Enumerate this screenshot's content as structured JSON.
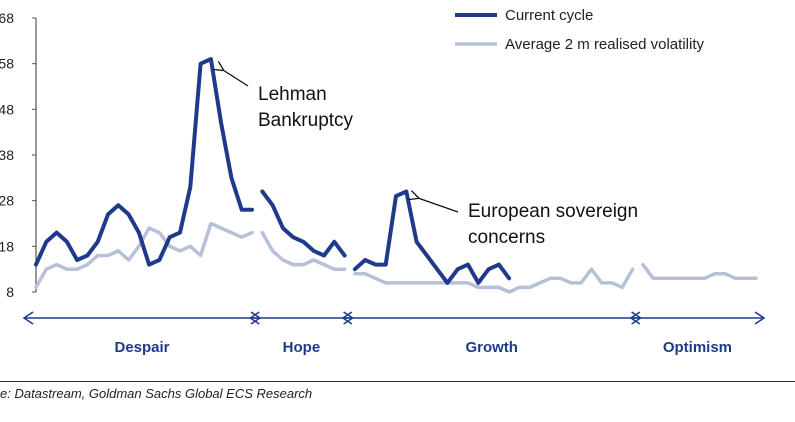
{
  "chart_data": {
    "type": "line",
    "title": "",
    "xlabel": "",
    "ylabel": "",
    "ylim": [
      8,
      68
    ],
    "y_ticks": [
      "68",
      "58",
      "48",
      "38",
      "28",
      "18",
      "8"
    ],
    "grid": false,
    "legend_position": "top-right",
    "series": [
      {
        "name": "Current cycle",
        "color": "#1f3a8a",
        "segments": [
          [
            [
              0,
              14
            ],
            [
              6,
              19
            ],
            [
              12,
              21
            ],
            [
              18,
              19
            ],
            [
              24,
              15
            ],
            [
              30,
              16
            ],
            [
              36,
              19
            ],
            [
              42,
              25
            ],
            [
              48,
              27
            ],
            [
              54,
              25
            ],
            [
              60,
              21
            ],
            [
              66,
              14
            ],
            [
              72,
              15
            ],
            [
              78,
              20
            ],
            [
              84,
              21
            ],
            [
              90,
              31
            ],
            [
              96,
              58
            ],
            [
              102,
              59
            ],
            [
              108,
              45
            ],
            [
              114,
              33
            ],
            [
              120,
              26
            ],
            [
              126,
              26
            ]
          ],
          [
            [
              132,
              30
            ],
            [
              138,
              27
            ],
            [
              144,
              22
            ],
            [
              150,
              20
            ],
            [
              156,
              19
            ],
            [
              162,
              17
            ],
            [
              168,
              16
            ],
            [
              174,
              19
            ],
            [
              180,
              16
            ]
          ],
          [
            [
              186,
              13
            ],
            [
              192,
              15
            ],
            [
              198,
              14
            ],
            [
              204,
              14
            ],
            [
              210,
              29
            ],
            [
              216,
              30
            ],
            [
              222,
              19
            ],
            [
              228,
              16
            ],
            [
              234,
              13
            ],
            [
              240,
              10
            ],
            [
              246,
              13
            ],
            [
              252,
              14
            ],
            [
              258,
              10
            ],
            [
              264,
              13
            ],
            [
              270,
              14
            ],
            [
              276,
              11
            ]
          ]
        ]
      },
      {
        "name": "Average 2 m realised volatility",
        "color": "#b7c0d8",
        "segments": [
          [
            [
              0,
              9
            ],
            [
              6,
              13
            ],
            [
              12,
              14
            ],
            [
              18,
              13
            ],
            [
              24,
              13
            ],
            [
              30,
              14
            ],
            [
              36,
              16
            ],
            [
              42,
              16
            ],
            [
              48,
              17
            ],
            [
              54,
              15
            ],
            [
              60,
              18
            ],
            [
              66,
              22
            ],
            [
              72,
              21
            ],
            [
              78,
              18
            ],
            [
              84,
              17
            ],
            [
              90,
              18
            ],
            [
              96,
              16
            ],
            [
              102,
              23
            ],
            [
              108,
              22
            ],
            [
              114,
              21
            ],
            [
              120,
              20
            ],
            [
              126,
              21
            ]
          ],
          [
            [
              132,
              21
            ],
            [
              138,
              17
            ],
            [
              144,
              15
            ],
            [
              150,
              14
            ],
            [
              156,
              14
            ],
            [
              162,
              15
            ],
            [
              168,
              14
            ],
            [
              174,
              13
            ],
            [
              180,
              13
            ]
          ],
          [
            [
              186,
              12
            ],
            [
              192,
              12
            ],
            [
              198,
              11
            ],
            [
              204,
              10
            ],
            [
              210,
              10
            ],
            [
              216,
              10
            ],
            [
              222,
              10
            ],
            [
              228,
              10
            ],
            [
              234,
              10
            ],
            [
              240,
              10
            ],
            [
              246,
              10
            ],
            [
              252,
              10
            ],
            [
              258,
              9
            ],
            [
              264,
              9
            ],
            [
              270,
              9
            ],
            [
              276,
              8
            ],
            [
              282,
              9
            ],
            [
              288,
              9
            ],
            [
              294,
              10
            ],
            [
              300,
              11
            ],
            [
              306,
              11
            ],
            [
              312,
              10
            ],
            [
              318,
              10
            ],
            [
              324,
              13
            ],
            [
              330,
              10
            ],
            [
              336,
              10
            ],
            [
              342,
              9
            ],
            [
              348,
              13
            ]
          ],
          [
            [
              354,
              14
            ],
            [
              360,
              11
            ],
            [
              366,
              11
            ],
            [
              372,
              11
            ],
            [
              378,
              11
            ],
            [
              384,
              11
            ],
            [
              390,
              11
            ],
            [
              396,
              12
            ],
            [
              402,
              12
            ],
            [
              408,
              11
            ],
            [
              414,
              11
            ],
            [
              420,
              11
            ]
          ]
        ]
      }
    ],
    "annotations": [
      {
        "lines": [
          "Lehman",
          "Bankruptcy"
        ],
        "x": 104,
        "y": 58
      },
      {
        "lines": [
          "European sovereign",
          "concerns"
        ],
        "x": 212,
        "y": 31
      }
    ],
    "phases": [
      {
        "label": "Despair",
        "x_start": 0,
        "x_end": 126
      },
      {
        "label": "Hope",
        "x_start": 132,
        "x_end": 180
      },
      {
        "label": "Growth",
        "x_start": 186,
        "x_end": 348
      },
      {
        "label": "Optimism",
        "x_start": 354,
        "x_end": 420
      }
    ]
  },
  "source": "e: Datastream, Goldman Sachs Global ECS Research"
}
